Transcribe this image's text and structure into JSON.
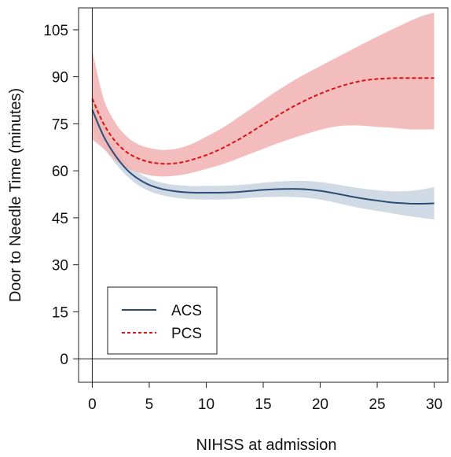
{
  "chart_data": {
    "type": "line",
    "title": "",
    "xlabel": "NIHSS at admission",
    "ylabel": "Door to Needle Time (minutes)",
    "xlim": [
      -1.2,
      31.2
    ],
    "ylim": [
      -7.5,
      112
    ],
    "xticks": [
      0,
      5,
      10,
      15,
      20,
      25,
      30
    ],
    "yticks": [
      0,
      15,
      30,
      45,
      60,
      75,
      90,
      105
    ],
    "reference_lines": {
      "x": 0,
      "y": 0
    },
    "grid": false,
    "legend_position": "bottom-left",
    "series": [
      {
        "name": "ACS",
        "line_style": "solid",
        "color": "#2b4c73",
        "band_color": "#a9bbd0",
        "x": [
          0,
          1,
          2,
          3,
          4,
          5,
          6,
          7,
          8,
          9,
          10,
          11,
          12,
          13,
          14,
          15,
          16,
          17,
          18,
          19,
          20,
          21,
          22,
          23,
          24,
          25,
          26,
          27,
          28,
          29,
          30
        ],
        "values": [
          79.5,
          71,
          65,
          60.5,
          57.5,
          55.5,
          54.3,
          53.6,
          53.2,
          53,
          53,
          53,
          53.1,
          53.3,
          53.6,
          53.9,
          54.1,
          54.2,
          54.2,
          54,
          53.6,
          53,
          52.3,
          51.6,
          51,
          50.5,
          50,
          49.7,
          49.5,
          49.5,
          49.6
        ],
        "lower": [
          73.5,
          67.5,
          62.5,
          58.5,
          55.5,
          53.5,
          52.3,
          51.6,
          51.1,
          50.9,
          50.8,
          50.8,
          50.9,
          51.1,
          51.4,
          51.6,
          51.7,
          51.7,
          51.6,
          51.3,
          50.8,
          50.1,
          49.3,
          48.5,
          47.8,
          47.2,
          46.6,
          46,
          45.4,
          44.9,
          44.5
        ],
        "upper": [
          85.5,
          74.5,
          67.5,
          62.5,
          59.5,
          57.5,
          56.3,
          55.6,
          55.3,
          55.1,
          55.2,
          55.2,
          55.3,
          55.5,
          55.8,
          56.2,
          56.5,
          56.7,
          56.8,
          56.7,
          56.4,
          55.9,
          55.3,
          54.7,
          54.2,
          53.8,
          53.5,
          53.4,
          53.6,
          54.1,
          54.8
        ]
      },
      {
        "name": "PCS",
        "line_style": "dashed",
        "color": "#dd1111",
        "band_color": "#f2b2b2",
        "x": [
          0,
          1,
          2,
          3,
          4,
          5,
          6,
          7,
          8,
          9,
          10,
          11,
          12,
          13,
          14,
          15,
          16,
          17,
          18,
          19,
          20,
          21,
          22,
          23,
          24,
          25,
          26,
          27,
          28,
          29,
          30
        ],
        "values": [
          83,
          75,
          69.5,
          66,
          64,
          62.8,
          62.3,
          62.3,
          62.8,
          63.8,
          65,
          66.5,
          68.3,
          70.3,
          72.5,
          74.8,
          77,
          79.2,
          81.2,
          83,
          84.6,
          86,
          87.2,
          88.2,
          88.9,
          89.3,
          89.5,
          89.6,
          89.6,
          89.6,
          89.6
        ],
        "lower": [
          70,
          67,
          63.5,
          61,
          59.5,
          58.6,
          58.2,
          58.3,
          58.8,
          59.6,
          60.6,
          61.6,
          62.8,
          64.2,
          65.6,
          67,
          68.4,
          69.7,
          70.9,
          72,
          73.1,
          73.9,
          74.4,
          74.5,
          74.3,
          74,
          73.8,
          73.5,
          73.2,
          73.2,
          73.2
        ],
        "upper": [
          98.5,
          83,
          75.5,
          71,
          68.5,
          67.3,
          66.7,
          66.8,
          67.6,
          69,
          70.9,
          72.8,
          75,
          77.5,
          80,
          82.5,
          85,
          87.3,
          89.5,
          91.5,
          93.4,
          95.3,
          97.2,
          99.1,
          101,
          102.8,
          104.6,
          106.3,
          108,
          109.5,
          110.5
        ]
      }
    ]
  }
}
